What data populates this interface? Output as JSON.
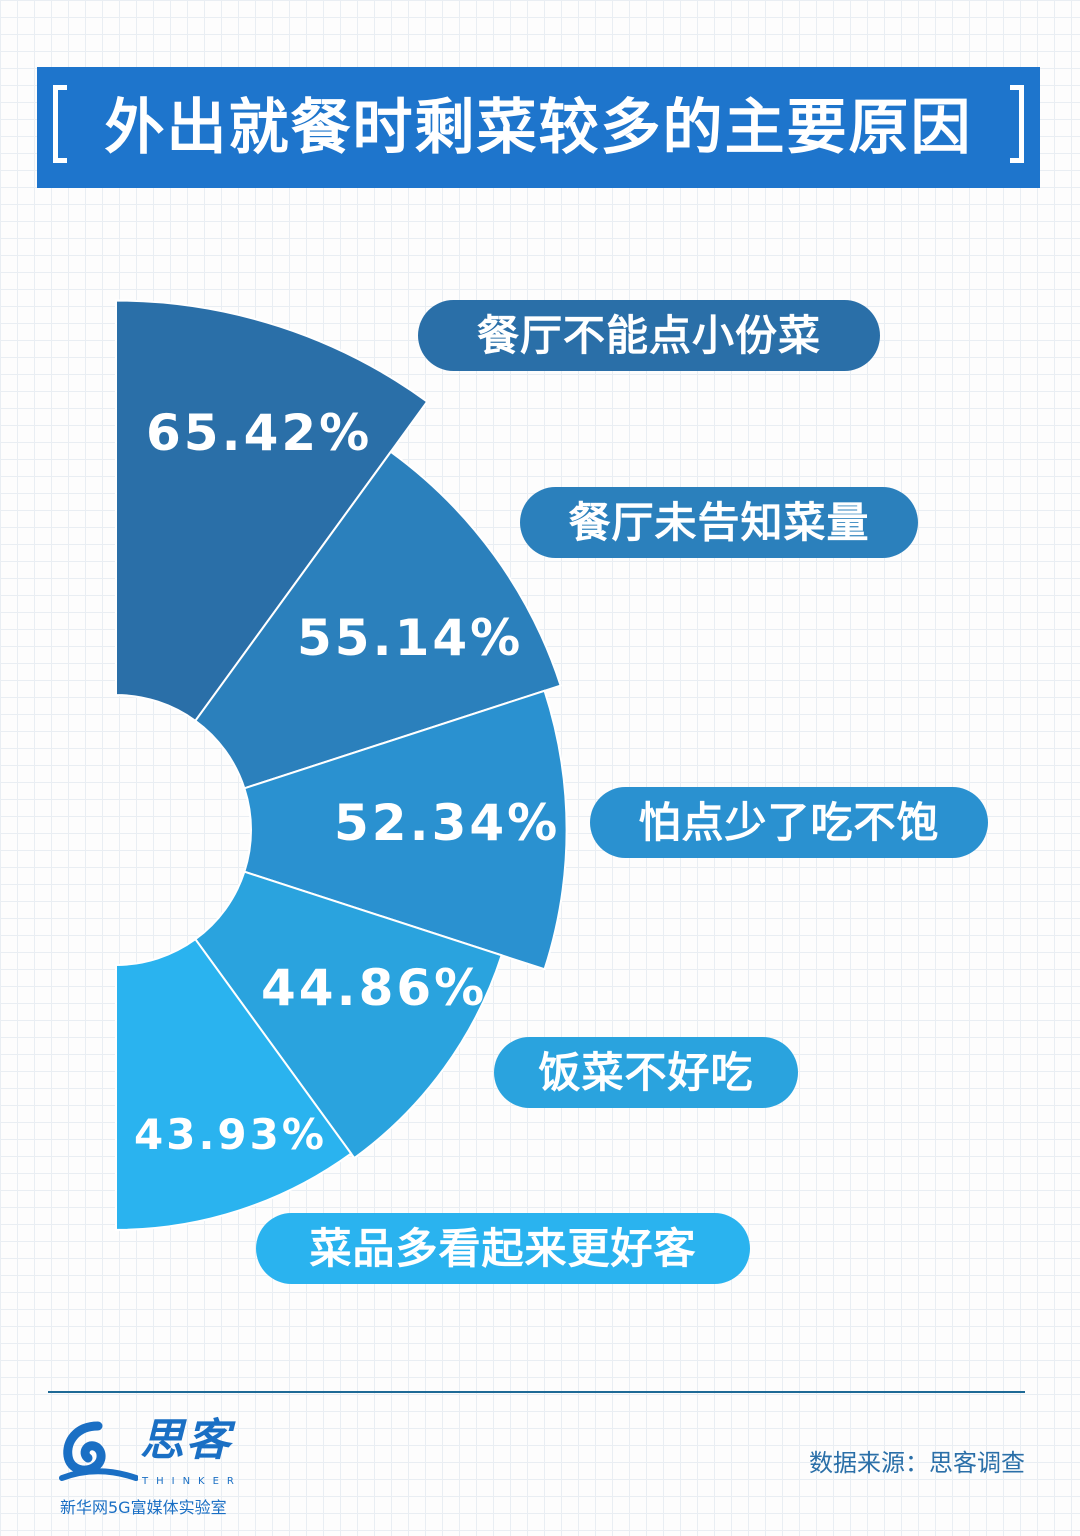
{
  "title": "外出就餐时剩菜较多的主要原因",
  "chart_data": {
    "type": "polar-bar",
    "categories": [
      "餐厅不能点小份菜",
      "餐厅未告知菜量",
      "怕点少了吃不饱",
      "饭菜不好吃",
      "菜品多看起来更好客"
    ],
    "values": [
      65.42,
      55.14,
      52.34,
      44.86,
      43.93
    ],
    "value_labels": [
      "65.42%",
      "55.14%",
      "52.34%",
      "44.86%",
      "43.93%"
    ],
    "unit": "%",
    "colors": [
      "#2a6fa8",
      "#2b80bc",
      "#2a91d0",
      "#2aa3de",
      "#2ab3ef"
    ],
    "grid": false,
    "legend": "none"
  },
  "footer": {
    "logo_name": "思客",
    "logo_en": "THINKER",
    "logo_sub": "新华网5G富媒体实验室",
    "source": "数据来源：思客调查"
  }
}
